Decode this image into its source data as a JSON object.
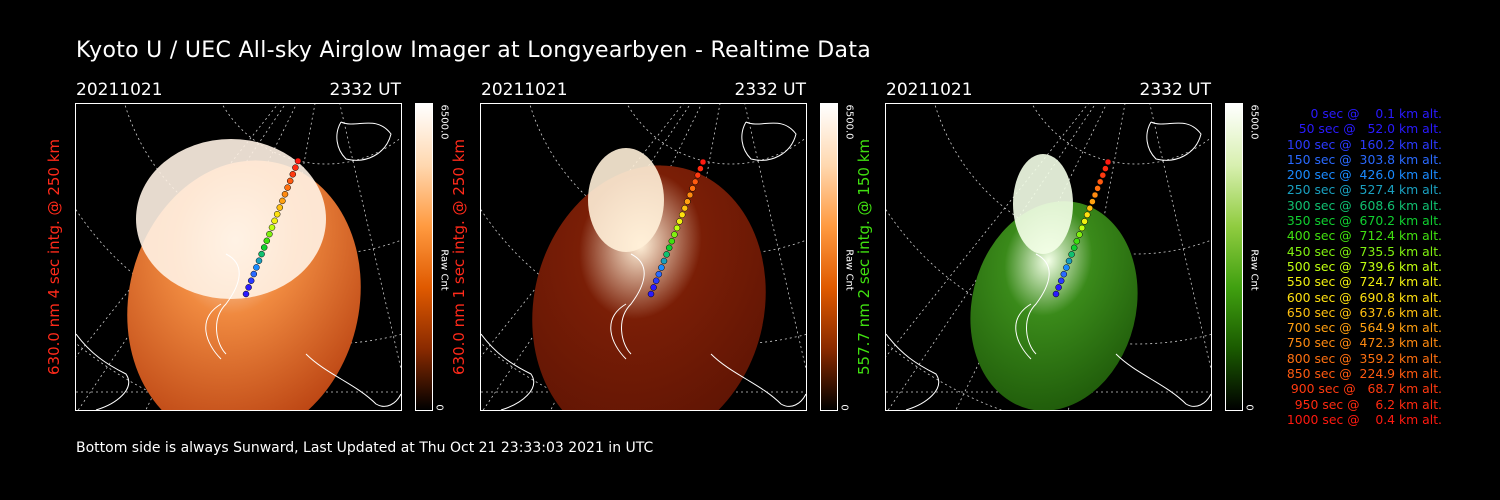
{
  "title": "Kyoto U / UEC All-sky Airglow Imager at Longyearbyen - Realtime Data",
  "footer": "Bottom side is always Sunward, Last Updated at Thu Oct 21 23:33:03 2021 in UTC",
  "panels": [
    {
      "date": "20211021",
      "time": "2332 UT",
      "side_label": "630.0 nm 4 sec intg. @ 250 km",
      "side_color": "#ff2a1a",
      "cb_max": "6500.0",
      "cb_min": "0",
      "cb_unit": "Raw Cnt",
      "cb_colors": [
        "#ffffff",
        "#ffd8b0",
        "#ff9a40",
        "#e05a00",
        "#8a2a00",
        "#000000"
      ],
      "image_colors": [
        "#fff2e4",
        "#f08a40",
        "#b84010"
      ]
    },
    {
      "date": "20211021",
      "time": "2332 UT",
      "side_label": "630.0 nm 1 sec intg. @ 250 km",
      "side_color": "#ff2a1a",
      "cb_max": "6500.0",
      "cb_min": "0",
      "cb_unit": "Raw Cnt",
      "cb_colors": [
        "#ffffff",
        "#ffd8b0",
        "#ff9a40",
        "#e05a00",
        "#8a2a00",
        "#000000"
      ],
      "image_colors": [
        "#fff0d8",
        "#7a1e06",
        "#5e1404"
      ]
    },
    {
      "date": "20211021",
      "time": "2332 UT",
      "side_label": "557.7 nm 2 sec intg. @ 150 km",
      "side_color": "#40e010",
      "cb_max": "6500.0",
      "cb_min": "0",
      "cb_unit": "Raw Cnt",
      "cb_colors": [
        "#ffffff",
        "#d8f0b0",
        "#90cc40",
        "#40a010",
        "#1a5a00",
        "#000000"
      ],
      "image_colors": [
        "#f4ffe8",
        "#3a8a1a",
        "#1f5a0a"
      ]
    }
  ],
  "trajectory": [
    {
      "label": "0 sec @    0.1 km alt.",
      "color": "#2a1aff"
    },
    {
      "label": "50 sec @   52.0 km alt.",
      "color": "#2a1aff"
    },
    {
      "label": "100 sec @  160.2 km alt.",
      "color": "#2a3aff"
    },
    {
      "label": "150 sec @  303.8 km alt.",
      "color": "#2a6aff"
    },
    {
      "label": "200 sec @  426.0 km alt.",
      "color": "#1a8aff"
    },
    {
      "label": "250 sec @  527.4 km alt.",
      "color": "#1aa0c0"
    },
    {
      "label": "300 sec @  608.6 km alt.",
      "color": "#10c070"
    },
    {
      "label": "350 sec @  670.2 km alt.",
      "color": "#10d030"
    },
    {
      "label": "400 sec @  712.4 km alt.",
      "color": "#40e010"
    },
    {
      "label": "450 sec @  735.5 km alt.",
      "color": "#80f010"
    },
    {
      "label": "500 sec @  739.6 km alt.",
      "color": "#c0ff10"
    },
    {
      "label": "550 sec @  724.7 km alt.",
      "color": "#f0f010"
    },
    {
      "label": "600 sec @  690.8 km alt.",
      "color": "#ffe010"
    },
    {
      "label": "650 sec @  637.6 km alt.",
      "color": "#ffc010"
    },
    {
      "label": "700 sec @  564.9 km alt.",
      "color": "#ffa010"
    },
    {
      "label": "750 sec @  472.3 km alt.",
      "color": "#ff8a10"
    },
    {
      "label": "800 sec @  359.2 km alt.",
      "color": "#ff7010"
    },
    {
      "label": "850 sec @  224.9 km alt.",
      "color": "#ff5a10"
    },
    {
      "label": "900 sec @   68.7 km alt.",
      "color": "#ff3a10"
    },
    {
      "label": "950 sec @    6.2 km alt.",
      "color": "#ff2a10"
    },
    {
      "label": "1000 sec @    0.4 km alt.",
      "color": "#ff1a10"
    }
  ]
}
